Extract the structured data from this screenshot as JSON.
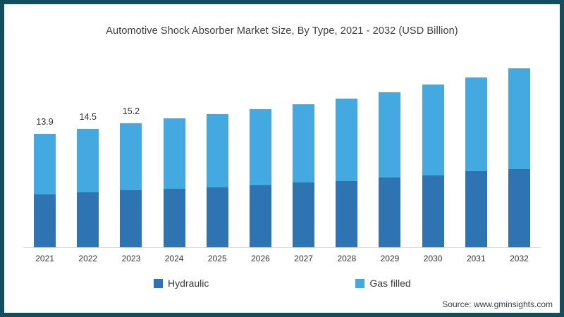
{
  "frame": {
    "border_color": "#114e60",
    "background": "#ffffff"
  },
  "title": "Automotive Shock Absorber Market Size, By Type, 2021 - 2032 (USD Billion)",
  "legend": [
    {
      "label": "Hydraulic",
      "color": "#2e73b2"
    },
    {
      "label": "Gas filled",
      "color": "#45a9e1"
    }
  ],
  "source": "Source: www.gminsights.com",
  "chart_data": {
    "type": "bar",
    "stacked": true,
    "title": "Automotive Shock Absorber Market Size, By Type, 2021 - 2032 (USD Billion)",
    "unit": "USD Billion",
    "categories": [
      "2021",
      "2022",
      "2023",
      "2024",
      "2025",
      "2026",
      "2027",
      "2028",
      "2029",
      "2030",
      "2031",
      "2032"
    ],
    "series": [
      {
        "name": "Hydraulic",
        "color": "#2e73b2",
        "values": [
          6.5,
          6.7,
          7.0,
          7.2,
          7.3,
          7.6,
          7.9,
          8.1,
          8.5,
          8.8,
          9.3,
          9.6
        ]
      },
      {
        "name": "Gas filled",
        "color": "#45a9e1",
        "values": [
          7.4,
          7.8,
          8.2,
          8.6,
          9.0,
          9.3,
          9.6,
          10.1,
          10.5,
          11.1,
          11.5,
          12.3
        ]
      }
    ],
    "totals": [
      13.9,
      14.5,
      15.2,
      15.8,
      16.3,
      16.9,
      17.5,
      18.2,
      19.0,
      19.9,
      20.8,
      21.9
    ],
    "data_labels_shown": [
      "13.9",
      "14.5",
      "15.2",
      "",
      "",
      "",
      "",
      "",
      "",
      "",
      "",
      ""
    ],
    "xlabel": "",
    "ylabel": "",
    "ylim": [
      0,
      23
    ],
    "grid": false,
    "legend_position": "bottom",
    "axis_line_color": "#d9d9d9"
  }
}
